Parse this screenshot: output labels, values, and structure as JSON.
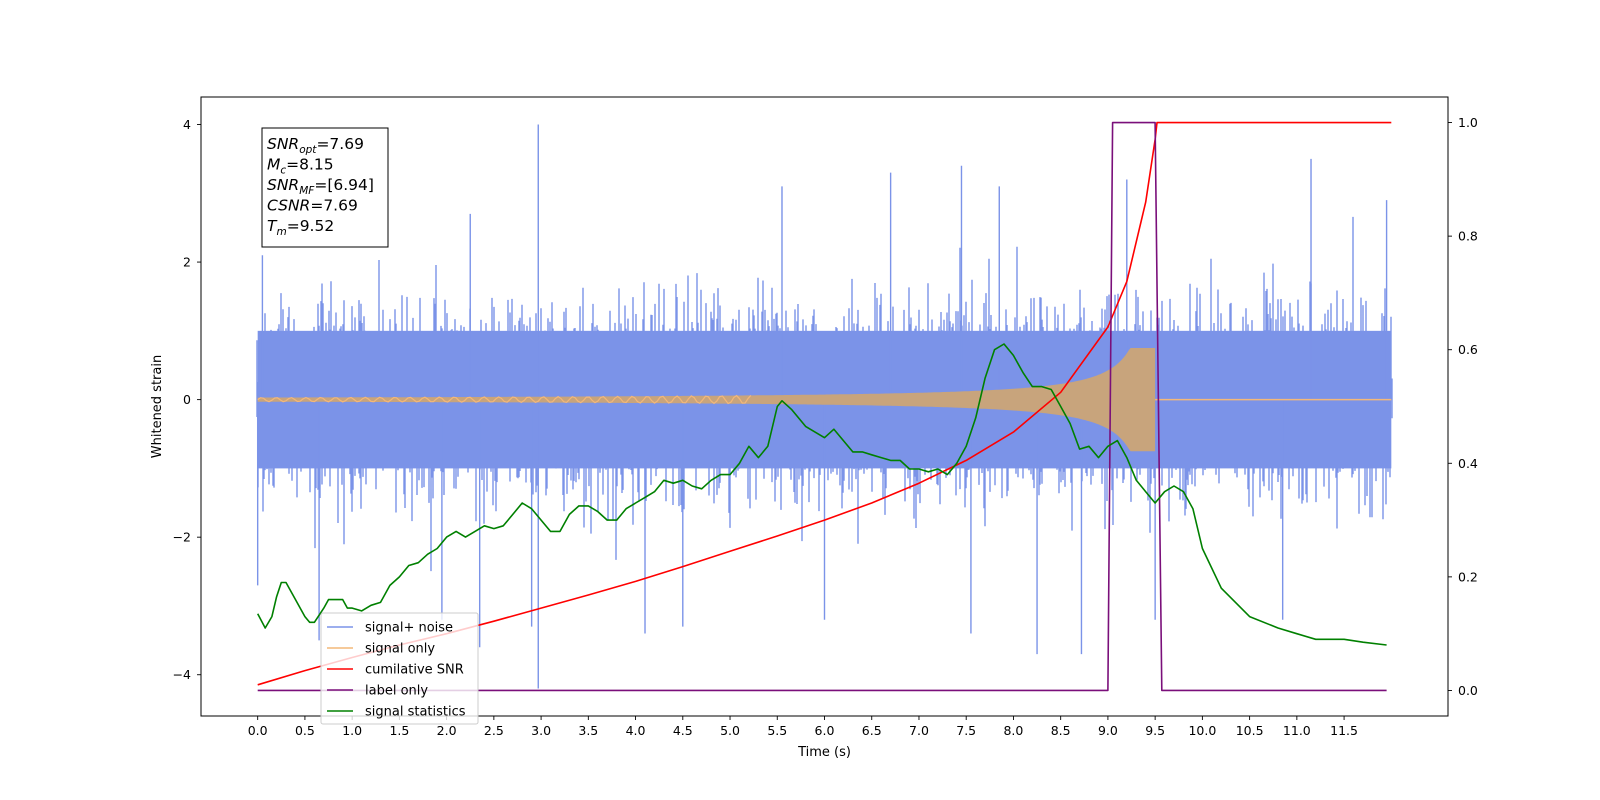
{
  "chart_data": {
    "type": "line",
    "title": "",
    "xlabel": "Time (s)",
    "ylabel": "Whitened strain",
    "ylabel_right": "",
    "xlim": [
      -0.6,
      12.6
    ],
    "ylim": [
      -4.6,
      4.4
    ],
    "ylim_right": [
      -0.045,
      1.045
    ],
    "x_ticks": [
      0.0,
      0.5,
      1.0,
      1.5,
      2.0,
      2.5,
      3.0,
      3.5,
      4.0,
      4.5,
      5.0,
      5.5,
      6.0,
      6.5,
      7.0,
      7.5,
      8.0,
      8.5,
      9.0,
      9.5,
      10.0,
      10.5,
      11.0,
      11.5
    ],
    "x_tick_labels": [
      "0.0",
      "0.5",
      "1.0",
      "1.5",
      "2.0",
      "2.5",
      "3.0",
      "3.5",
      "4.0",
      "4.5",
      "5.0",
      "5.5",
      "6.0",
      "6.5",
      "7.0",
      "7.5",
      "8.0",
      "8.5",
      "9.0",
      "9.5",
      "10.0",
      "10.5",
      "11.0",
      "11.5"
    ],
    "y_ticks": [
      -4,
      -2,
      0,
      2,
      4
    ],
    "y_tick_labels": [
      "−4",
      "−2",
      "0",
      "2",
      "4"
    ],
    "y_ticks_right": [
      0.0,
      0.2,
      0.4,
      0.6,
      0.8,
      1.0
    ],
    "y_tick_labels_right": [
      "0.0",
      "0.2",
      "0.4",
      "0.6",
      "0.8",
      "1.0"
    ],
    "grid": false,
    "legend_position": "lower-left",
    "series": [
      {
        "name": "signal+ noise",
        "color": "#7b93e8",
        "axis": "left",
        "x_range": [
          0.0,
          12.0
        ],
        "envelope_typical": [
          -1.6,
          1.6
        ],
        "envelope_extremes": [
          -4.2,
          4.0
        ],
        "spikes": [
          [
            0.0,
            -2.7
          ],
          [
            0.05,
            2.1
          ],
          [
            0.65,
            -3.5
          ],
          [
            1.95,
            -3.2
          ],
          [
            2.25,
            2.7
          ],
          [
            2.35,
            -3.6
          ],
          [
            2.97,
            4.0
          ],
          [
            2.97,
            -4.2
          ],
          [
            2.9,
            -3.3
          ],
          [
            4.1,
            -3.4
          ],
          [
            4.5,
            -3.3
          ],
          [
            5.55,
            3.1
          ],
          [
            6.0,
            -3.2
          ],
          [
            6.7,
            3.3
          ],
          [
            7.45,
            3.4
          ],
          [
            7.55,
            -3.4
          ],
          [
            7.85,
            3.1
          ],
          [
            8.25,
            -3.7
          ],
          [
            8.72,
            -3.7
          ],
          [
            9.2,
            3.2
          ],
          [
            9.5,
            -3.2
          ],
          [
            10.85,
            -3.2
          ],
          [
            11.15,
            3.5
          ],
          [
            11.95,
            2.9
          ]
        ]
      },
      {
        "name": "signal only",
        "color": "#f4b878",
        "axis": "left",
        "chirp_start": 0.0,
        "merger_time": 9.5,
        "amplitude_start": 0.03,
        "amplitude_peak": 0.75
      },
      {
        "name": "cumilative SNR",
        "color": "#ff0000",
        "axis": "right",
        "x": [
          0.0,
          0.5,
          1.0,
          1.5,
          2.0,
          2.5,
          3.0,
          3.5,
          4.0,
          4.5,
          5.0,
          5.5,
          6.0,
          6.5,
          7.0,
          7.5,
          8.0,
          8.5,
          9.0,
          9.2,
          9.4,
          9.5,
          9.52,
          12.0
        ],
        "y": [
          0.01,
          0.035,
          0.058,
          0.08,
          0.1,
          0.122,
          0.145,
          0.168,
          0.192,
          0.218,
          0.245,
          0.272,
          0.3,
          0.33,
          0.365,
          0.405,
          0.455,
          0.525,
          0.64,
          0.72,
          0.86,
          0.97,
          1.0,
          1.0
        ]
      },
      {
        "name": "label only",
        "color": "#7a0f7a",
        "axis": "right",
        "x": [
          0.0,
          9.0,
          9.05,
          9.5,
          9.57,
          11.95
        ],
        "y": [
          0.0,
          0.0,
          1.0,
          1.0,
          0.0,
          0.0
        ]
      },
      {
        "name": "signal statistics",
        "color": "#008000",
        "axis": "right",
        "x": [
          0.0,
          0.08,
          0.15,
          0.2,
          0.25,
          0.3,
          0.4,
          0.5,
          0.55,
          0.6,
          0.7,
          0.75,
          0.8,
          0.9,
          0.95,
          1.0,
          1.1,
          1.2,
          1.3,
          1.4,
          1.5,
          1.6,
          1.7,
          1.8,
          1.9,
          2.0,
          2.1,
          2.2,
          2.3,
          2.4,
          2.5,
          2.6,
          2.7,
          2.8,
          2.9,
          3.0,
          3.1,
          3.2,
          3.3,
          3.4,
          3.5,
          3.6,
          3.7,
          3.8,
          3.9,
          4.0,
          4.1,
          4.2,
          4.3,
          4.4,
          4.5,
          4.6,
          4.7,
          4.8,
          4.9,
          5.0,
          5.1,
          5.2,
          5.3,
          5.4,
          5.5,
          5.55,
          5.65,
          5.8,
          6.0,
          6.1,
          6.2,
          6.3,
          6.4,
          6.5,
          6.6,
          6.7,
          6.8,
          6.9,
          7.0,
          7.1,
          7.2,
          7.3,
          7.4,
          7.5,
          7.6,
          7.7,
          7.8,
          7.9,
          8.0,
          8.1,
          8.2,
          8.3,
          8.4,
          8.5,
          8.6,
          8.7,
          8.8,
          8.9,
          9.0,
          9.1,
          9.2,
          9.3,
          9.4,
          9.5,
          9.6,
          9.7,
          9.8,
          9.9,
          10.0,
          10.2,
          10.5,
          10.8,
          11.0,
          11.2,
          11.5,
          11.7,
          11.95
        ],
        "y": [
          0.135,
          0.11,
          0.13,
          0.165,
          0.19,
          0.19,
          0.16,
          0.13,
          0.12,
          0.12,
          0.145,
          0.16,
          0.16,
          0.16,
          0.145,
          0.145,
          0.14,
          0.15,
          0.155,
          0.185,
          0.2,
          0.22,
          0.225,
          0.24,
          0.25,
          0.27,
          0.28,
          0.27,
          0.28,
          0.29,
          0.285,
          0.29,
          0.31,
          0.33,
          0.32,
          0.3,
          0.28,
          0.28,
          0.31,
          0.325,
          0.325,
          0.315,
          0.3,
          0.3,
          0.32,
          0.33,
          0.34,
          0.35,
          0.37,
          0.365,
          0.37,
          0.36,
          0.355,
          0.37,
          0.38,
          0.38,
          0.4,
          0.43,
          0.41,
          0.43,
          0.5,
          0.51,
          0.495,
          0.465,
          0.445,
          0.46,
          0.44,
          0.42,
          0.42,
          0.415,
          0.41,
          0.405,
          0.405,
          0.39,
          0.39,
          0.385,
          0.39,
          0.38,
          0.4,
          0.43,
          0.48,
          0.55,
          0.6,
          0.61,
          0.59,
          0.56,
          0.535,
          0.535,
          0.53,
          0.5,
          0.47,
          0.425,
          0.43,
          0.41,
          0.43,
          0.44,
          0.41,
          0.37,
          0.35,
          0.33,
          0.35,
          0.36,
          0.35,
          0.32,
          0.25,
          0.18,
          0.13,
          0.11,
          0.1,
          0.09,
          0.09,
          0.085,
          0.08
        ]
      }
    ],
    "annotation": {
      "lines": [
        {
          "sym": "SNR",
          "sub": "opt",
          "eq": "=7.69"
        },
        {
          "sym": "M",
          "sub": "c",
          "eq": "=8.15"
        },
        {
          "sym": "SNR",
          "sub": "MF",
          "eq": "=[6.94]"
        },
        {
          "sym": "CSNR",
          "sub": "",
          "eq": "=7.69"
        },
        {
          "sym": "T",
          "sub": "m",
          "eq": "=9.52"
        }
      ]
    }
  }
}
